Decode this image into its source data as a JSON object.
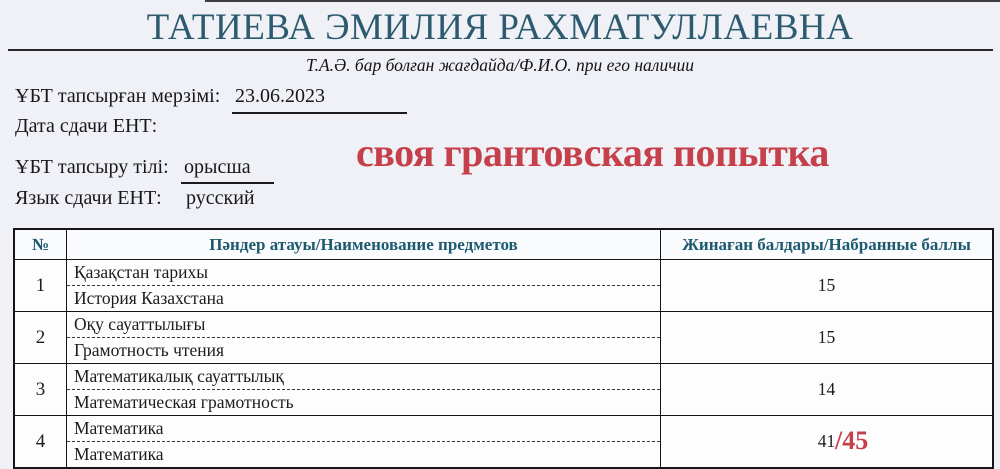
{
  "header": {
    "title": "ТАТИЕВА ЭМИЛИЯ РАХМАТУЛЛАЕВНА",
    "subtitle": "Т.А.Ә. бар болған жағдайда/Ф.И.О. при его наличии"
  },
  "form": {
    "date_label_kk": "ҰБТ тапсырған мерзімі:",
    "date_value": "23.06.2023",
    "date_label_ru": "Дата сдачи ЕНТ:",
    "language_label_kk": "ҰБТ тапсыру тілі:",
    "language_value_kk": "орысша",
    "language_label_ru": "Язык сдачи ЕНТ:",
    "language_value_ru": "русский"
  },
  "annotation": {
    "note_text": "своя грантовская попытка",
    "max_score_suffix": "/45"
  },
  "table": {
    "headers": {
      "number": "№",
      "subject": "Пәндер атауы/Наименование предметов",
      "score": "Жинаған балдары/Набранные баллы"
    },
    "rows": [
      {
        "number": "1",
        "subject_kk": "Қазақстан тарихы",
        "subject_ru": "История Казахстана",
        "score": "15"
      },
      {
        "number": "2",
        "subject_kk": "Оқу сауаттылығы",
        "subject_ru": "Грамотность чтения",
        "score": "15"
      },
      {
        "number": "3",
        "subject_kk": "Математикалық сауаттылық",
        "subject_ru": "Математическая грамотность",
        "score": "14"
      },
      {
        "number": "4",
        "subject_kk": "Математика",
        "subject_ru": "Математика",
        "score": "41",
        "score_annotation": "/45"
      }
    ]
  },
  "colors": {
    "accent_teal": "#2c5a6f",
    "annotation_red": "#c5404a",
    "page_background": "#eff1f6"
  }
}
